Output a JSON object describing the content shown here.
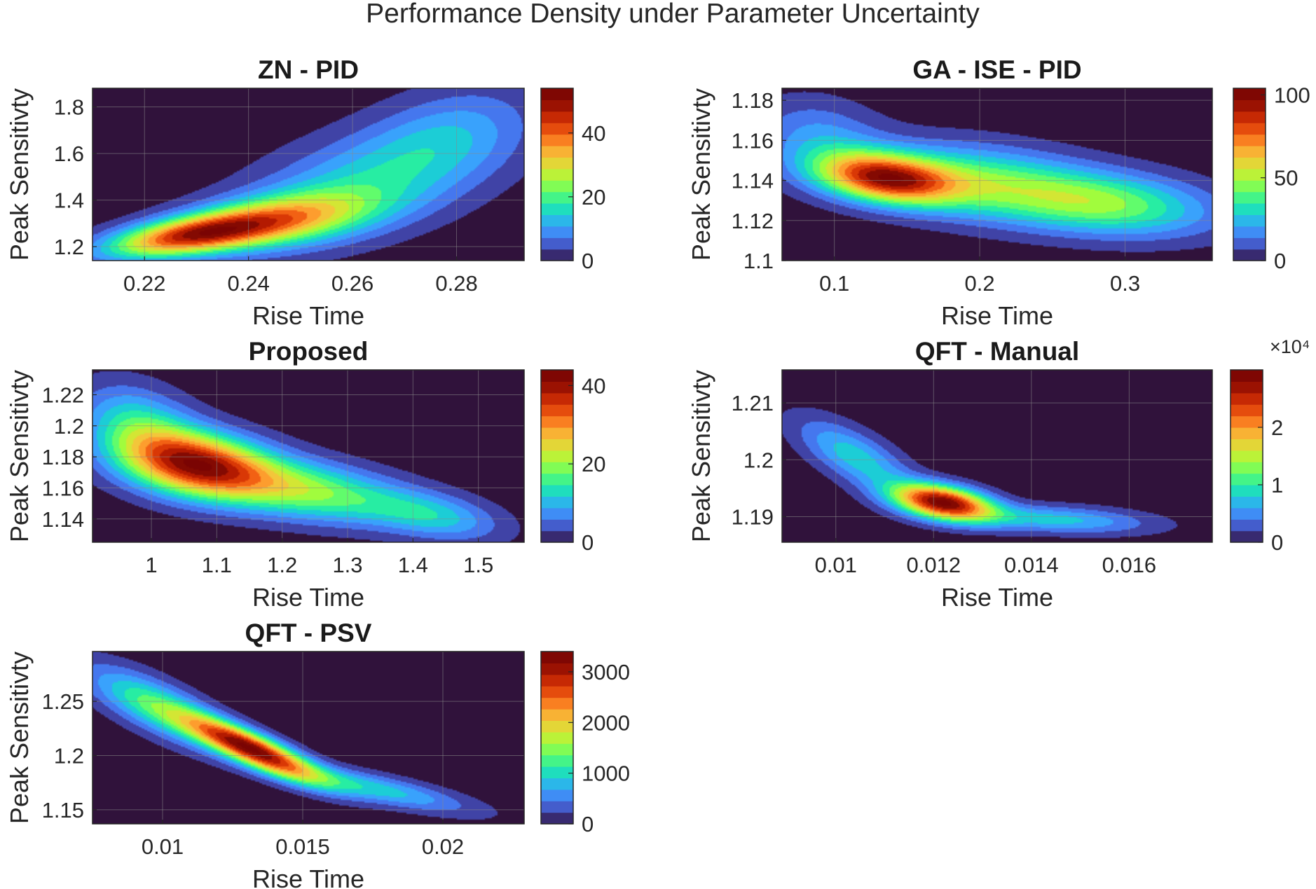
{
  "figure_title": "Performance Density under Parameter Uncertainty",
  "colors": {
    "background": "#ffffff",
    "zero_level": "#30123b",
    "colormap": "turbo",
    "grid": "#8a8a8a"
  },
  "chart_data": [
    {
      "type": "heatmap",
      "title": "ZN - PID",
      "xlabel": "Rise Time",
      "ylabel": "Peak Sensitivty",
      "xlim": [
        0.21,
        0.293
      ],
      "ylim": [
        1.14,
        1.88
      ],
      "xticks": [
        0.22,
        0.24,
        0.26,
        0.28
      ],
      "xtick_labels": [
        "0.22",
        "0.24",
        "0.26",
        "0.28"
      ],
      "yticks": [
        1.2,
        1.4,
        1.6,
        1.8
      ],
      "ytick_labels": [
        "1.2",
        "1.4",
        "1.6",
        "1.8"
      ],
      "colorbar": {
        "min": 0,
        "max": 54,
        "ticks": [
          0,
          20,
          40
        ],
        "tick_labels": [
          "0",
          "20",
          "40"
        ],
        "exponent": ""
      },
      "density_components": [
        {
          "cx": 0.228,
          "cy": 1.245,
          "sx": 0.011,
          "sy": 0.065,
          "rho": 0.55,
          "weight": 1.0
        },
        {
          "cx": 0.245,
          "cy": 1.31,
          "sx": 0.013,
          "sy": 0.085,
          "rho": 0.45,
          "weight": 0.75
        },
        {
          "cx": 0.262,
          "cy": 1.47,
          "sx": 0.016,
          "sy": 0.17,
          "rho": 0.5,
          "weight": 0.38
        },
        {
          "cx": 0.279,
          "cy": 1.68,
          "sx": 0.011,
          "sy": 0.15,
          "rho": 0.35,
          "weight": 0.24
        }
      ]
    },
    {
      "type": "heatmap",
      "title": "GA - ISE - PID",
      "xlabel": "Rise Time",
      "ylabel": "Peak Sensitivty",
      "xlim": [
        0.064,
        0.36
      ],
      "ylim": [
        1.1,
        1.186
      ],
      "xticks": [
        0.1,
        0.2,
        0.3
      ],
      "xtick_labels": [
        "0.1",
        "0.2",
        "0.3"
      ],
      "yticks": [
        1.1,
        1.12,
        1.14,
        1.16,
        1.18
      ],
      "ytick_labels": [
        "1.1",
        "1.12",
        "1.14",
        "1.16",
        "1.18"
      ],
      "colorbar": {
        "min": 0,
        "max": 104,
        "ticks": [
          0,
          50,
          100
        ],
        "tick_labels": [
          "0",
          "50",
          "100"
        ],
        "exponent": ""
      },
      "density_components": [
        {
          "cx": 0.135,
          "cy": 1.141,
          "sx": 0.032,
          "sy": 0.0085,
          "rho": -0.3,
          "weight": 1.0
        },
        {
          "cx": 0.2,
          "cy": 1.139,
          "sx": 0.055,
          "sy": 0.013,
          "rho": -0.3,
          "weight": 0.5
        },
        {
          "cx": 0.29,
          "cy": 1.128,
          "sx": 0.05,
          "sy": 0.011,
          "rho": -0.25,
          "weight": 0.5
        },
        {
          "cx": 0.09,
          "cy": 1.16,
          "sx": 0.03,
          "sy": 0.014,
          "rho": -0.2,
          "weight": 0.25
        }
      ]
    },
    {
      "type": "heatmap",
      "title": "Proposed",
      "xlabel": "Rise Time",
      "ylabel": "Peak Sensitivty",
      "xlim": [
        0.91,
        1.57
      ],
      "ylim": [
        1.125,
        1.236
      ],
      "xticks": [
        1,
        1.1,
        1.2,
        1.3,
        1.4,
        1.5
      ],
      "xtick_labels": [
        "1",
        "1.1",
        "1.2",
        "1.3",
        "1.4",
        "1.5"
      ],
      "yticks": [
        1.14,
        1.16,
        1.18,
        1.2,
        1.22
      ],
      "ytick_labels": [
        "1.14",
        "1.16",
        "1.18",
        "1.2",
        "1.22"
      ],
      "colorbar": {
        "min": 0,
        "max": 44,
        "ticks": [
          0,
          20,
          40
        ],
        "tick_labels": [
          "0",
          "20",
          "40"
        ],
        "exponent": ""
      },
      "density_components": [
        {
          "cx": 1.07,
          "cy": 1.175,
          "sx": 0.08,
          "sy": 0.015,
          "rho": -0.3,
          "weight": 1.0
        },
        {
          "cx": 1.24,
          "cy": 1.158,
          "sx": 0.1,
          "sy": 0.014,
          "rho": -0.4,
          "weight": 0.5
        },
        {
          "cx": 1.43,
          "cy": 1.142,
          "sx": 0.07,
          "sy": 0.011,
          "rho": -0.4,
          "weight": 0.3
        },
        {
          "cx": 0.98,
          "cy": 1.2,
          "sx": 0.06,
          "sy": 0.018,
          "rho": -0.3,
          "weight": 0.35
        }
      ]
    },
    {
      "type": "heatmap",
      "title": "QFT - Manual",
      "xlabel": "Rise Time",
      "ylabel": "Peak Sensitivty",
      "xlim": [
        0.0089,
        0.0177
      ],
      "ylim": [
        1.1855,
        1.2158
      ],
      "xticks": [
        0.01,
        0.012,
        0.014,
        0.016
      ],
      "xtick_labels": [
        "0.01",
        "0.012",
        "0.014",
        "0.016"
      ],
      "yticks": [
        1.19,
        1.2,
        1.21
      ],
      "ytick_labels": [
        "1.19",
        "1.2",
        "1.21"
      ],
      "colorbar": {
        "min": 0,
        "max": 3,
        "ticks": [
          0,
          1,
          2
        ],
        "tick_labels": [
          "0",
          "1",
          "2"
        ],
        "exponent": "×10⁴"
      },
      "density_components": [
        {
          "cx": 0.0122,
          "cy": 1.1925,
          "sx": 0.0007,
          "sy": 0.0022,
          "rho": -0.4,
          "weight": 1.0
        },
        {
          "cx": 0.0145,
          "cy": 1.1895,
          "sx": 0.0013,
          "sy": 0.0017,
          "rho": -0.3,
          "weight": 0.28
        },
        {
          "cx": 0.0104,
          "cy": 1.2005,
          "sx": 0.0008,
          "sy": 0.0045,
          "rho": -0.7,
          "weight": 0.3
        }
      ]
    },
    {
      "type": "heatmap",
      "title": "QFT - PSV",
      "xlabel": "Rise Time",
      "ylabel": "Peak Sensitivty",
      "xlim": [
        0.0075,
        0.0229
      ],
      "ylim": [
        1.137,
        1.296
      ],
      "xticks": [
        0.01,
        0.015,
        0.02
      ],
      "xtick_labels": [
        "0.01",
        "0.015",
        "0.02"
      ],
      "yticks": [
        1.15,
        1.2,
        1.25
      ],
      "ytick_labels": [
        "1.15",
        "1.2",
        "1.25"
      ],
      "colorbar": {
        "min": 0,
        "max": 3400,
        "ticks": [
          0,
          1000,
          2000,
          3000
        ],
        "tick_labels": [
          "0",
          "1000",
          "2000",
          "3000"
        ],
        "exponent": ""
      },
      "density_components": [
        {
          "cx": 0.0132,
          "cy": 1.206,
          "sx": 0.0016,
          "sy": 0.02,
          "rho": -0.85,
          "weight": 1.0
        },
        {
          "cx": 0.0175,
          "cy": 1.17,
          "sx": 0.0023,
          "sy": 0.015,
          "rho": -0.8,
          "weight": 0.3
        },
        {
          "cx": 0.0098,
          "cy": 1.245,
          "sx": 0.0017,
          "sy": 0.025,
          "rho": -0.75,
          "weight": 0.4
        }
      ]
    }
  ]
}
